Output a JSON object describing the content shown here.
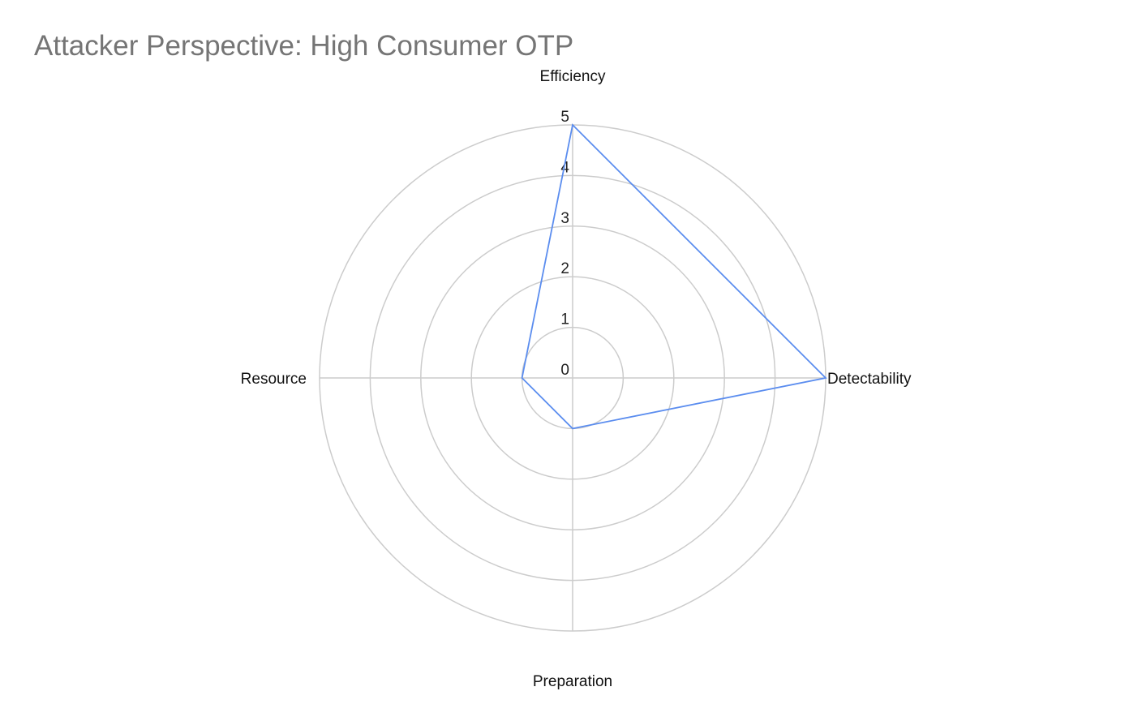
{
  "title": "Attacker Perspective: High Consumer OTP",
  "chart_data": {
    "type": "radar",
    "title": "Attacker Perspective: High Consumer OTP",
    "axes": [
      "Efficiency",
      "Detectability",
      "Preparation",
      "Resource"
    ],
    "rlim": [
      0,
      5
    ],
    "ticks": [
      "0",
      "1",
      "2",
      "3",
      "4",
      "5"
    ],
    "grid": true,
    "series": [
      {
        "values": [
          5,
          5,
          1,
          1
        ],
        "color": "#5b8def"
      }
    ]
  }
}
